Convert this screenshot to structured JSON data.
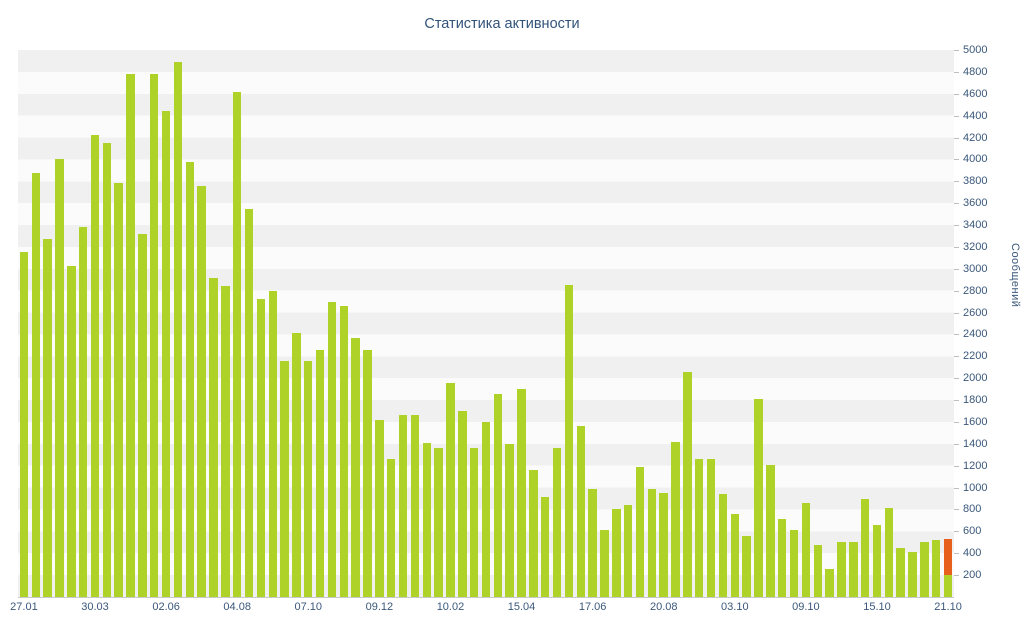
{
  "chart_data": {
    "type": "bar",
    "title": "Статистика активности",
    "ylabel": "Сообщений",
    "xlabel": "",
    "ylim": [
      0,
      5000
    ],
    "ytick_step": 200,
    "grid": "banded-horizontal",
    "legend_position": "none",
    "band_colors": [
      "#f0f0f0",
      "#fbfbfb"
    ],
    "bar_color": "#aed228",
    "highlight_color": "#e8611c",
    "text_color": "#3a587a",
    "x_tick_labels": [
      "27.01",
      "30.03",
      "02.06",
      "04.08",
      "07.10",
      "09.12",
      "10.02",
      "15.04",
      "17.06",
      "20.08",
      "03.10",
      "09.10",
      "15.10",
      "21.10"
    ],
    "x_tick_every": 6,
    "values": [
      3150,
      3880,
      3270,
      4000,
      3030,
      3380,
      4220,
      4150,
      3780,
      4780,
      3320,
      4780,
      4440,
      4890,
      3980,
      3760,
      2920,
      2840,
      4620,
      3550,
      2720,
      2800,
      2160,
      2410,
      2160,
      2260,
      2700,
      2660,
      2370,
      2260,
      1620,
      1260,
      1660,
      1660,
      1410,
      1360,
      1960,
      1700,
      1360,
      1600,
      1860,
      1400,
      1900,
      1160,
      910,
      1360,
      2850,
      1560,
      990,
      610,
      800,
      840,
      1190,
      990,
      950,
      1420,
      2060,
      1260,
      1260,
      940,
      760,
      560,
      1810,
      1210,
      710,
      610,
      860,
      480,
      260,
      500,
      500,
      900,
      660,
      810,
      450,
      410,
      500,
      520,
      530
    ],
    "highlight_last": true,
    "highlight_last_green_base": 200
  }
}
